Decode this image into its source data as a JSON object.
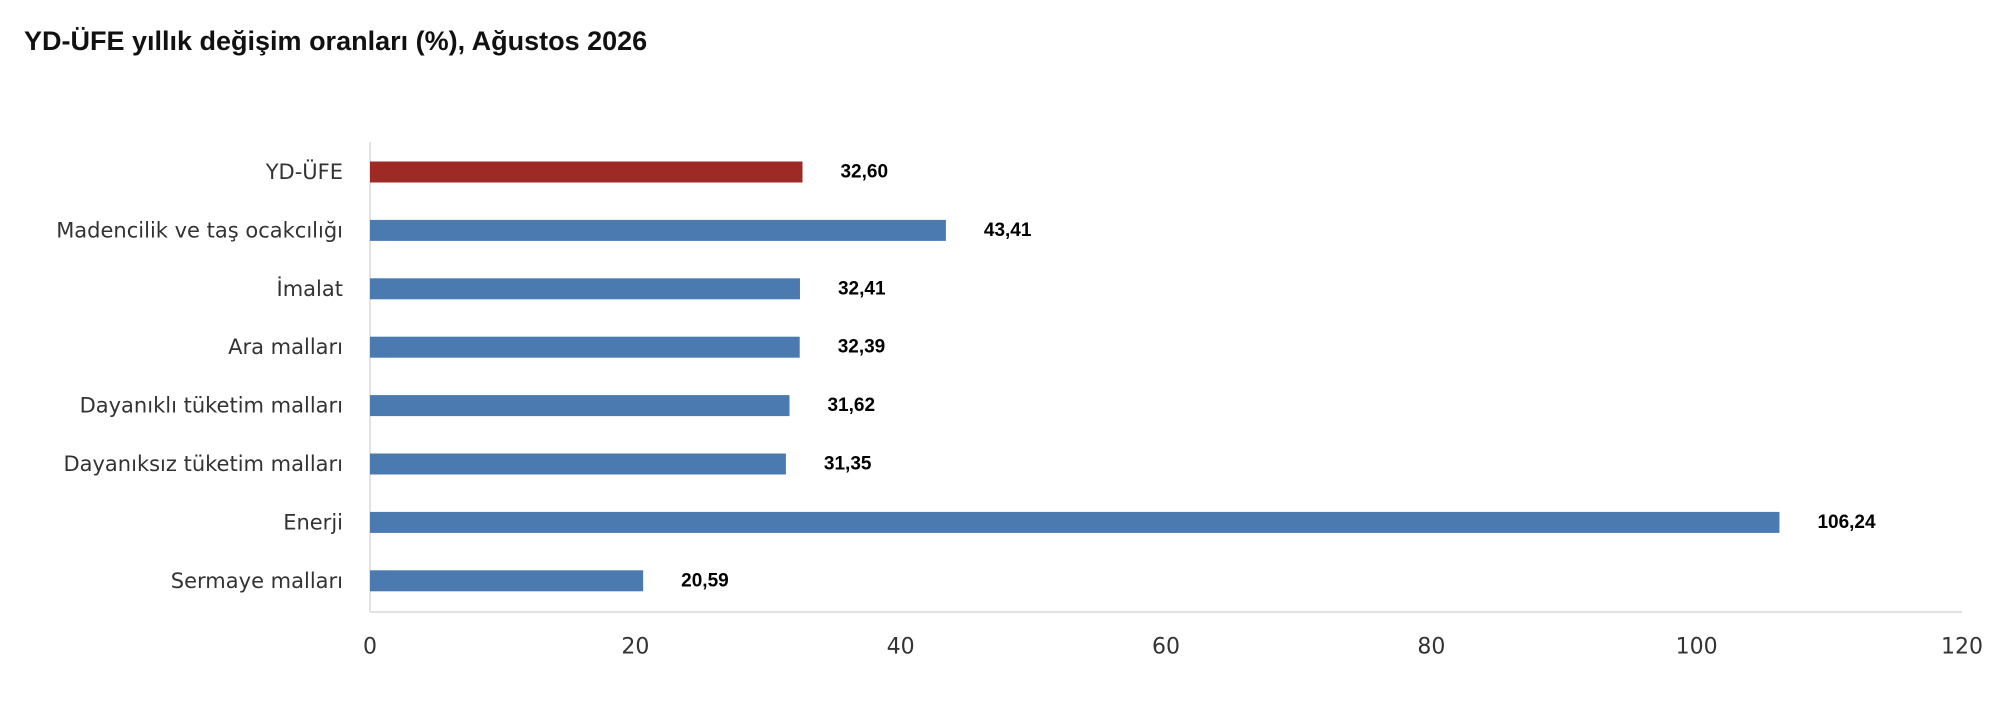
{
  "chart_data": {
    "type": "bar",
    "orientation": "horizontal",
    "title": "YD-ÜFE yıllık değişim oranları (%), Ağustos 2026",
    "xlabel": "",
    "ylabel": "",
    "categories": [
      "YD-ÜFE",
      "Madencilik ve taş ocakcılığı",
      "İmalat",
      "Ara malları",
      "Dayanıklı tüketim malları",
      "Dayanıksız tüketim malları",
      "Enerji",
      "Sermaye malları"
    ],
    "values": [
      32.6,
      43.41,
      32.41,
      32.39,
      31.62,
      31.35,
      106.24,
      20.59
    ],
    "value_labels": [
      "32,60",
      "43,41",
      "32,41",
      "32,39",
      "31,62",
      "31,35",
      "106,24",
      "20,59"
    ],
    "bar_colors": [
      "#9e2a26",
      "#4a7ab0",
      "#4a7ab0",
      "#4a7ab0",
      "#4a7ab0",
      "#4a7ab0",
      "#4a7ab0",
      "#4a7ab0"
    ],
    "xlim": [
      0,
      120
    ],
    "xticks": [
      0,
      20,
      40,
      60,
      80,
      100,
      120
    ],
    "xtick_labels": [
      "0",
      "20",
      "40",
      "60",
      "80",
      "100",
      "120"
    ],
    "grid": false,
    "legend": "none"
  }
}
